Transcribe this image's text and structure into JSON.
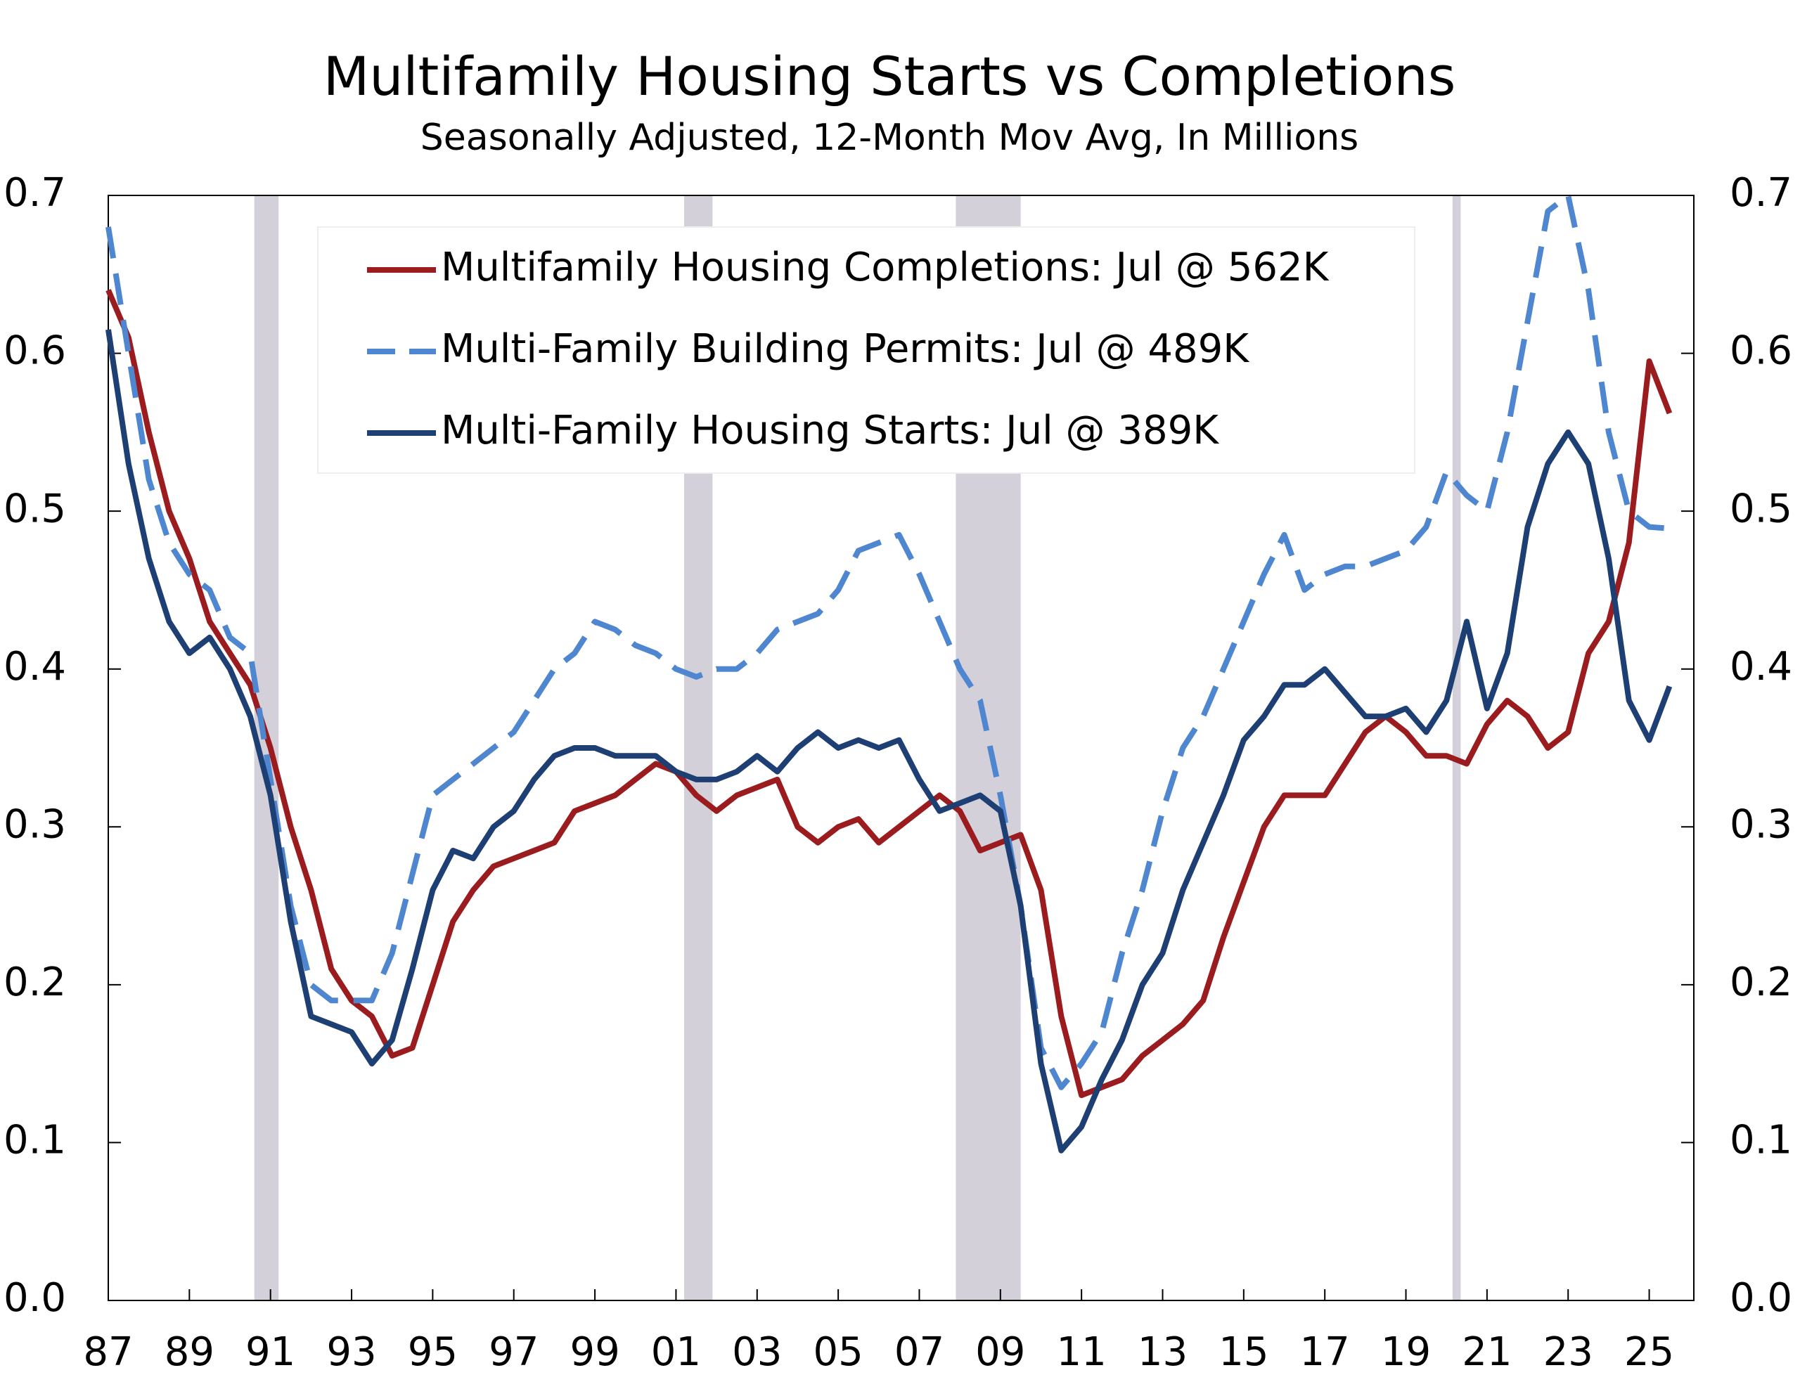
{
  "chart_data": {
    "type": "line",
    "title": "Multifamily Housing Starts vs Completions",
    "subtitle": "Seasonally Adjusted, 12-Month Mov Avg, In Millions",
    "x": [
      1987,
      1987.5,
      1988,
      1988.5,
      1989,
      1989.5,
      1990,
      1990.5,
      1991,
      1991.5,
      1992,
      1992.5,
      1993,
      1993.5,
      1994,
      1994.5,
      1995,
      1995.5,
      1996,
      1996.5,
      1997,
      1997.5,
      1998,
      1998.5,
      1999,
      1999.5,
      2000,
      2000.5,
      2001,
      2001.5,
      2002,
      2002.5,
      2003,
      2003.5,
      2004,
      2004.5,
      2005,
      2005.5,
      2006,
      2006.5,
      2007,
      2007.5,
      2008,
      2008.5,
      2009,
      2009.5,
      2010,
      2010.5,
      2011,
      2011.5,
      2012,
      2012.5,
      2013,
      2013.5,
      2014,
      2014.5,
      2015,
      2015.5,
      2016,
      2016.5,
      2017,
      2017.5,
      2018,
      2018.5,
      2019,
      2019.5,
      2020,
      2020.5,
      2021,
      2021.5,
      2022,
      2022.5,
      2023,
      2023.5,
      2024,
      2024.5,
      2025,
      2025.5
    ],
    "series": [
      {
        "name": "Multifamily Housing Completions: Jul @ 562K",
        "color": "#9b1c1f",
        "style": "solid",
        "values": [
          0.64,
          0.61,
          0.55,
          0.5,
          0.47,
          0.43,
          0.41,
          0.39,
          0.35,
          0.3,
          0.26,
          0.21,
          0.19,
          0.18,
          0.155,
          0.16,
          0.2,
          0.24,
          0.26,
          0.275,
          0.28,
          0.285,
          0.29,
          0.31,
          0.315,
          0.32,
          0.33,
          0.34,
          0.335,
          0.32,
          0.31,
          0.32,
          0.325,
          0.33,
          0.3,
          0.29,
          0.3,
          0.305,
          0.29,
          0.3,
          0.31,
          0.32,
          0.31,
          0.285,
          0.29,
          0.295,
          0.26,
          0.18,
          0.13,
          0.135,
          0.14,
          0.155,
          0.165,
          0.175,
          0.19,
          0.23,
          0.265,
          0.3,
          0.32,
          0.32,
          0.32,
          0.34,
          0.36,
          0.37,
          0.36,
          0.345,
          0.345,
          0.34,
          0.365,
          0.38,
          0.37,
          0.35,
          0.36,
          0.41,
          0.43,
          0.48,
          0.595,
          0.562
        ]
      },
      {
        "name": "Multi-Family Building Permits: Jul @ 489K",
        "color": "#4f86d0",
        "style": "dashed",
        "values": [
          0.68,
          0.6,
          0.52,
          0.48,
          0.46,
          0.45,
          0.42,
          0.41,
          0.33,
          0.25,
          0.2,
          0.19,
          0.19,
          0.19,
          0.22,
          0.27,
          0.32,
          0.33,
          0.34,
          0.35,
          0.36,
          0.38,
          0.4,
          0.41,
          0.43,
          0.425,
          0.415,
          0.41,
          0.4,
          0.395,
          0.4,
          0.4,
          0.41,
          0.425,
          0.43,
          0.435,
          0.45,
          0.475,
          0.48,
          0.485,
          0.46,
          0.43,
          0.4,
          0.38,
          0.32,
          0.25,
          0.16,
          0.135,
          0.15,
          0.17,
          0.22,
          0.26,
          0.31,
          0.35,
          0.37,
          0.4,
          0.43,
          0.46,
          0.485,
          0.45,
          0.46,
          0.465,
          0.465,
          0.47,
          0.475,
          0.49,
          0.525,
          0.51,
          0.5,
          0.55,
          0.62,
          0.69,
          0.7,
          0.64,
          0.55,
          0.5,
          0.49,
          0.489
        ]
      },
      {
        "name": "Multi-Family Housing Starts: Jul @ 389K",
        "color": "#1d3f73",
        "style": "solid",
        "values": [
          0.615,
          0.53,
          0.47,
          0.43,
          0.41,
          0.42,
          0.4,
          0.37,
          0.32,
          0.24,
          0.18,
          0.175,
          0.17,
          0.15,
          0.165,
          0.21,
          0.26,
          0.285,
          0.28,
          0.3,
          0.31,
          0.33,
          0.345,
          0.35,
          0.35,
          0.345,
          0.345,
          0.345,
          0.335,
          0.33,
          0.33,
          0.335,
          0.345,
          0.335,
          0.35,
          0.36,
          0.35,
          0.355,
          0.35,
          0.355,
          0.33,
          0.31,
          0.315,
          0.32,
          0.31,
          0.25,
          0.15,
          0.095,
          0.11,
          0.14,
          0.165,
          0.2,
          0.22,
          0.26,
          0.29,
          0.32,
          0.355,
          0.37,
          0.39,
          0.39,
          0.4,
          0.385,
          0.37,
          0.37,
          0.375,
          0.36,
          0.38,
          0.43,
          0.375,
          0.41,
          0.49,
          0.53,
          0.55,
          0.53,
          0.47,
          0.38,
          0.355,
          0.389
        ]
      }
    ],
    "recessions": [
      [
        1990.6,
        1991.2
      ],
      [
        2001.2,
        2001.9
      ],
      [
        2007.9,
        2009.5
      ],
      [
        2020.15,
        2020.35
      ]
    ],
    "recession_color": "#d4d0da",
    "xlim": [
      1987,
      2026.1
    ],
    "xticks": [
      {
        "value": 1987,
        "label": "87"
      },
      {
        "value": 1989,
        "label": "89"
      },
      {
        "value": 1991,
        "label": "91"
      },
      {
        "value": 1993,
        "label": "93"
      },
      {
        "value": 1995,
        "label": "95"
      },
      {
        "value": 1997,
        "label": "97"
      },
      {
        "value": 1999,
        "label": "99"
      },
      {
        "value": 2001,
        "label": "01"
      },
      {
        "value": 2003,
        "label": "03"
      },
      {
        "value": 2005,
        "label": "05"
      },
      {
        "value": 2007,
        "label": "07"
      },
      {
        "value": 2009,
        "label": "09"
      },
      {
        "value": 2011,
        "label": "11"
      },
      {
        "value": 2013,
        "label": "13"
      },
      {
        "value": 2015,
        "label": "15"
      },
      {
        "value": 2017,
        "label": "17"
      },
      {
        "value": 2019,
        "label": "19"
      },
      {
        "value": 2021,
        "label": "21"
      },
      {
        "value": 2023,
        "label": "23"
      },
      {
        "value": 2025,
        "label": "25"
      }
    ],
    "ylim": [
      0,
      0.7
    ],
    "yticks": [
      {
        "value": 0,
        "label": "0.0"
      },
      0.1,
      0.2,
      0.3,
      0.4,
      0.5,
      0.6,
      0.7
    ],
    "y2lim": [
      0,
      0.7
    ],
    "y2ticks": [
      {
        "value": 0,
        "label": "0.0"
      },
      0.1,
      0.2,
      0.3,
      0.4,
      0.5,
      0.6,
      0.7
    ],
    "legend": "top"
  }
}
